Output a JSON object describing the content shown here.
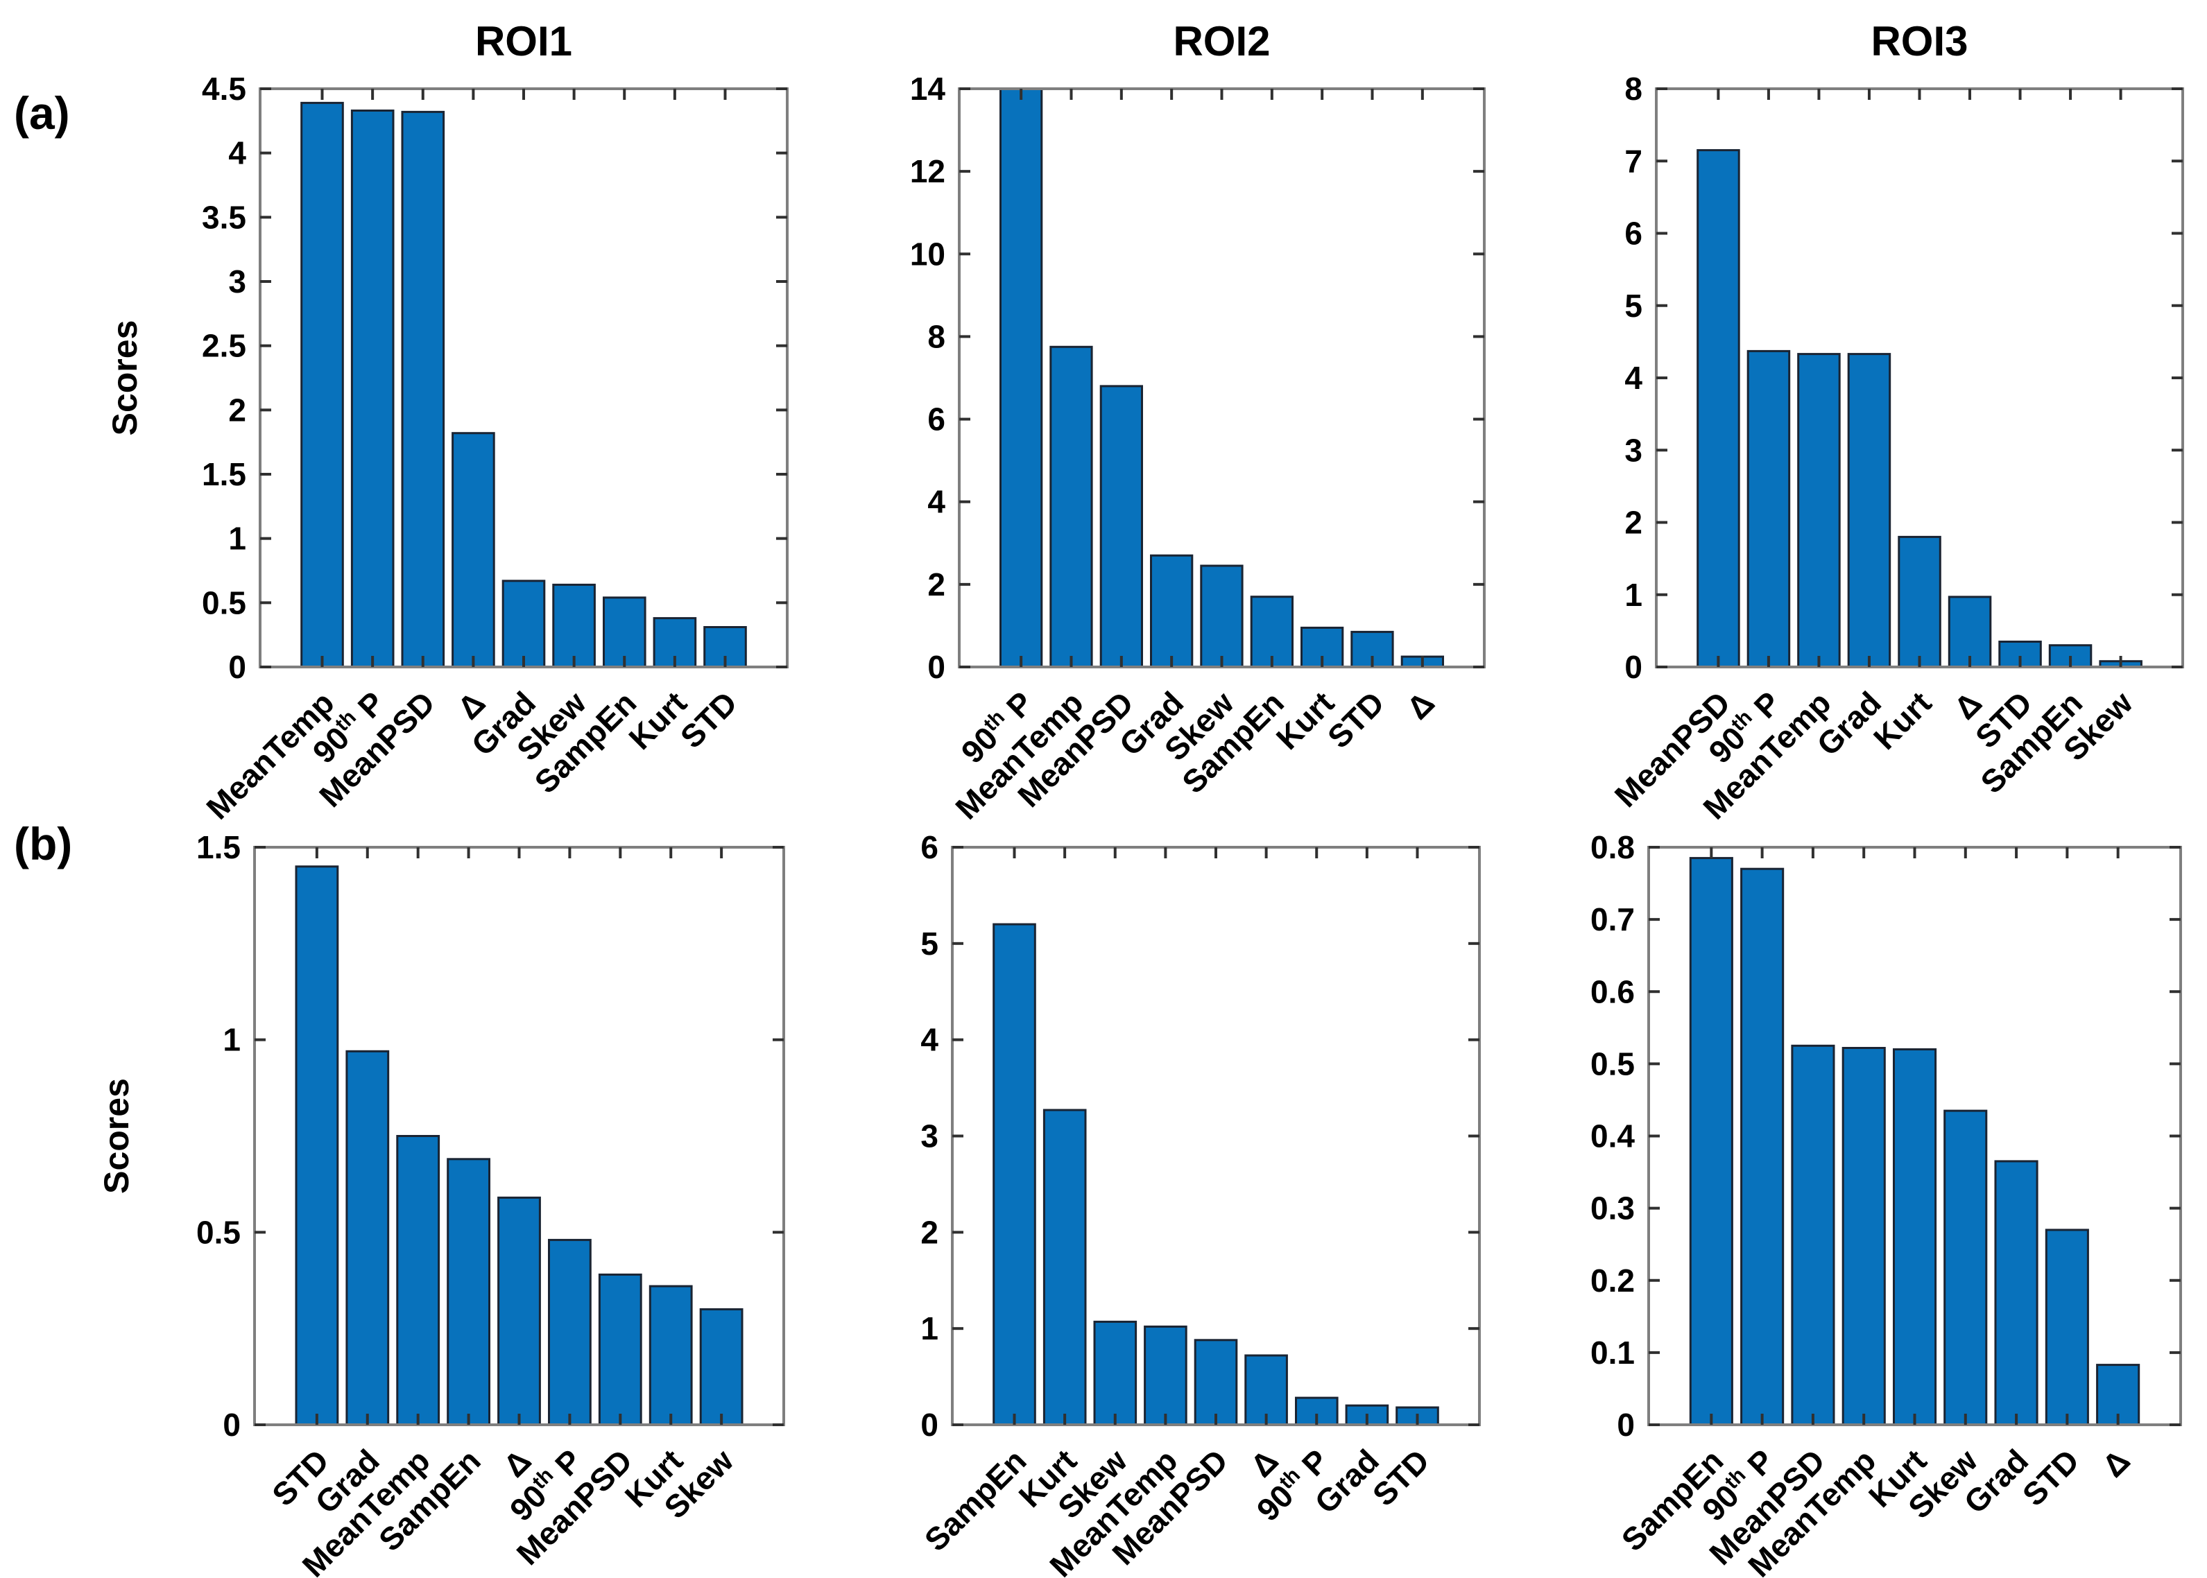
{
  "figure": {
    "panel_labels": [
      "(a)",
      "(b)"
    ],
    "bar_color": "#0872BC",
    "bar_edge_color": "#1A2433",
    "axis_color": "#7F7F7F",
    "tick_color": "#303030",
    "text_color": "#000000",
    "background_color": "#FFFFFF"
  },
  "chart_data": [
    {
      "id": "a_roi1",
      "type": "bar",
      "panel": "a",
      "title": "ROI1",
      "ylabel": "Scores",
      "xlabel": "",
      "ylim": [
        0,
        4.5
      ],
      "grid": false,
      "legend": null,
      "yticks": [
        0,
        0.5,
        1,
        1.5,
        2,
        2.5,
        3,
        3.5,
        4,
        4.5
      ],
      "ytick_labels": [
        "0",
        "0.5",
        "1",
        "1.5",
        "2",
        "2.5",
        "3",
        "3.5",
        "4",
        "4.5"
      ],
      "categories": [
        "MeanTemp",
        "90^{th} P",
        "MeanPSD",
        "Δ",
        "Grad",
        "Skew",
        "SampEn",
        "Kurt",
        "STD"
      ],
      "values": [
        4.39,
        4.33,
        4.32,
        1.82,
        0.67,
        0.64,
        0.54,
        0.38,
        0.31
      ]
    },
    {
      "id": "a_roi2",
      "type": "bar",
      "panel": "a",
      "title": "ROI2",
      "ylabel": "",
      "xlabel": "",
      "ylim": [
        0,
        14
      ],
      "grid": false,
      "legend": null,
      "yticks": [
        0,
        2,
        4,
        6,
        8,
        10,
        12,
        14
      ],
      "ytick_labels": [
        "0",
        "2",
        "4",
        "6",
        "8",
        "10",
        "12",
        "14"
      ],
      "categories": [
        "90^{th} P",
        "MeanTemp",
        "MeanPSD",
        "Grad",
        "Skew",
        "SampEn",
        "Kurt",
        "STD",
        "Δ"
      ],
      "values": [
        14.0,
        7.75,
        6.8,
        2.7,
        2.45,
        1.7,
        0.95,
        0.85,
        0.25
      ]
    },
    {
      "id": "a_roi3",
      "type": "bar",
      "panel": "a",
      "title": "ROI3",
      "ylabel": "",
      "xlabel": "",
      "ylim": [
        0,
        8
      ],
      "grid": false,
      "legend": null,
      "yticks": [
        0,
        1,
        2,
        3,
        4,
        5,
        6,
        7,
        8
      ],
      "ytick_labels": [
        "0",
        "1",
        "2",
        "3",
        "4",
        "5",
        "6",
        "7",
        "8"
      ],
      "categories": [
        "MeanPSD",
        "90^{th} P",
        "MeanTemp",
        "Grad",
        "Kurt",
        "Δ",
        "STD",
        "SampEn",
        "Skew"
      ],
      "values": [
        7.15,
        4.37,
        4.33,
        4.33,
        1.8,
        0.97,
        0.35,
        0.3,
        0.08
      ]
    },
    {
      "id": "b_roi1",
      "type": "bar",
      "panel": "b",
      "title": "",
      "ylabel": "Scores",
      "xlabel": "",
      "ylim": [
        0,
        1.5
      ],
      "grid": false,
      "legend": null,
      "yticks": [
        0,
        0.5,
        1,
        1.5
      ],
      "ytick_labels": [
        "0",
        "0.5",
        "1",
        "1.5"
      ],
      "categories": [
        "STD",
        "Grad",
        "MeanTemp",
        "SampEn",
        "Δ",
        "90^{th} P",
        "MeanPSD",
        "Kurt",
        "Skew"
      ],
      "values": [
        1.45,
        0.97,
        0.75,
        0.69,
        0.59,
        0.48,
        0.39,
        0.36,
        0.3
      ]
    },
    {
      "id": "b_roi2",
      "type": "bar",
      "panel": "b",
      "title": "",
      "ylabel": "",
      "xlabel": "",
      "ylim": [
        0,
        6
      ],
      "grid": false,
      "legend": null,
      "yticks": [
        0,
        1,
        2,
        3,
        4,
        5,
        6
      ],
      "ytick_labels": [
        "0",
        "1",
        "2",
        "3",
        "4",
        "5",
        "6"
      ],
      "categories": [
        "SampEn",
        "Kurt",
        "Skew",
        "MeanTemp",
        "MeanPSD",
        "Δ",
        "90^{th} P",
        "Grad",
        "STD"
      ],
      "values": [
        5.2,
        3.27,
        1.07,
        1.02,
        0.88,
        0.72,
        0.28,
        0.2,
        0.18
      ]
    },
    {
      "id": "b_roi3",
      "type": "bar",
      "panel": "b",
      "title": "",
      "ylabel": "",
      "xlabel": "",
      "ylim": [
        0,
        0.8
      ],
      "grid": false,
      "legend": null,
      "yticks": [
        0,
        0.1,
        0.2,
        0.3,
        0.4,
        0.5,
        0.6,
        0.7,
        0.8
      ],
      "ytick_labels": [
        "0",
        "0.1",
        "0.2",
        "0.3",
        "0.4",
        "0.5",
        "0.6",
        "0.7",
        "0.8"
      ],
      "categories": [
        "SampEn",
        "90^{th} P",
        "MeanPSD",
        "MeanTemp",
        "Kurt",
        "Skew",
        "Grad",
        "STD",
        "Δ"
      ],
      "values": [
        0.785,
        0.77,
        0.525,
        0.522,
        0.52,
        0.435,
        0.365,
        0.27,
        0.083
      ]
    }
  ]
}
